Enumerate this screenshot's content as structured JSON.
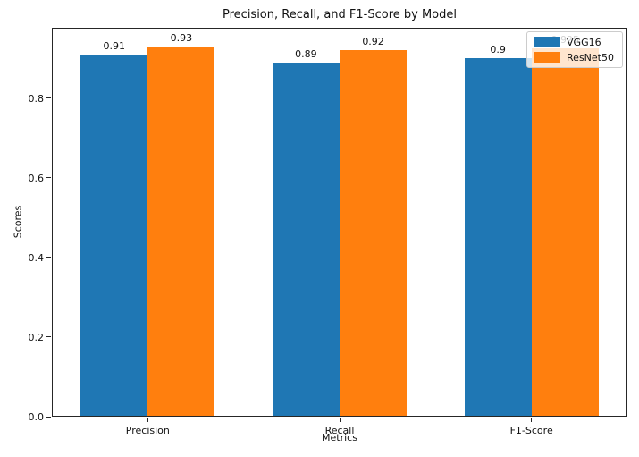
{
  "chart_data": {
    "type": "bar",
    "title": "Precision, Recall, and F1-Score by Model",
    "xlabel": "Metrics",
    "ylabel": "Scores",
    "categories": [
      "Precision",
      "Recall",
      "F1-Score"
    ],
    "series": [
      {
        "name": "VGG16",
        "color": "#1f77b4",
        "values": [
          0.91,
          0.89,
          0.9
        ],
        "labels": [
          "0.91",
          "0.89",
          "0.9"
        ]
      },
      {
        "name": "ResNet50",
        "color": "#ff7f0e",
        "values": [
          0.93,
          0.92,
          0.925
        ],
        "labels": [
          "0.93",
          "0.92",
          "0.925"
        ]
      }
    ],
    "ylim": [
      0,
      0.9765
    ],
    "xlim": [
      -0.5,
      2.5
    ],
    "yticks": {
      "values": [
        0.0,
        0.2,
        0.4,
        0.6,
        0.8
      ],
      "labels": [
        "0.0",
        "0.2",
        "0.4",
        "0.6",
        "0.8"
      ]
    },
    "bar_width_frac": 0.35,
    "grid": false,
    "legend": {
      "position": "upper right",
      "entries": [
        "VGG16",
        "ResNet50"
      ]
    }
  }
}
